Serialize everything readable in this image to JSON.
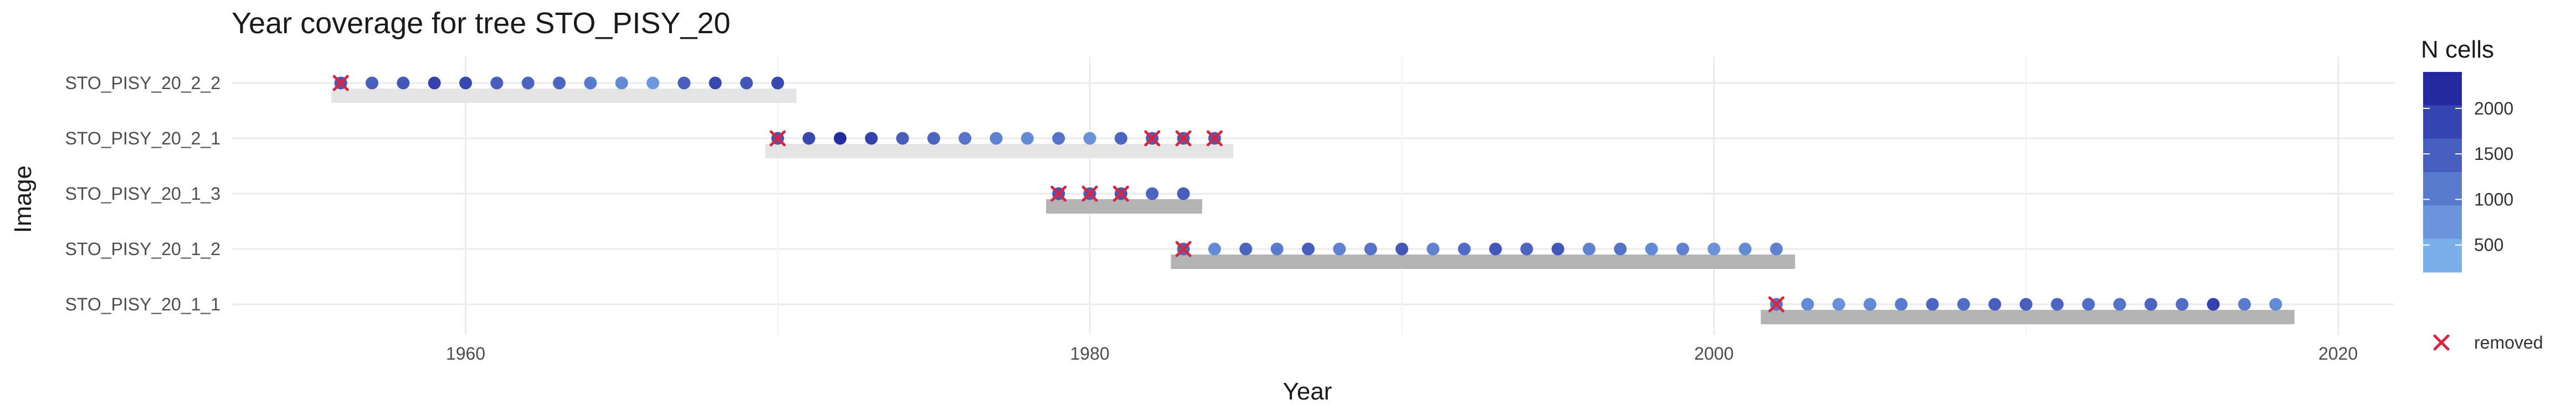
{
  "chart_data": {
    "type": "scatter",
    "title": "Year coverage for tree STO_PISY_20",
    "xlabel": "Year",
    "ylabel": "Image",
    "xlim": [
      1952.5,
      2021.8
    ],
    "x_ticks": [
      1960,
      1980,
      2000,
      2020
    ],
    "grid": true,
    "categories": [
      "STO_PISY_20_2_2",
      "STO_PISY_20_2_1",
      "STO_PISY_20_1_3",
      "STO_PISY_20_1_2",
      "STO_PISY_20_1_1"
    ],
    "coverage_bars": [
      {
        "image": "STO_PISY_20_2_2",
        "start": 1955.7,
        "end": 1970.6,
        "shade": "light"
      },
      {
        "image": "STO_PISY_20_2_1",
        "start": 1969.6,
        "end": 1984.6,
        "shade": "light"
      },
      {
        "image": "STO_PISY_20_1_3",
        "start": 1978.6,
        "end": 1983.6,
        "shade": "dark"
      },
      {
        "image": "STO_PISY_20_1_2",
        "start": 1982.6,
        "end": 2002.6,
        "shade": "dark"
      },
      {
        "image": "STO_PISY_20_1_1",
        "start": 2001.5,
        "end": 2018.6,
        "shade": "dark"
      }
    ],
    "series": [
      {
        "image": "STO_PISY_20_2_2",
        "years": [
          1956,
          1957,
          1958,
          1959,
          1960,
          1961,
          1962,
          1963,
          1964,
          1965,
          1966,
          1967,
          1968,
          1969,
          1970
        ],
        "n_cells": [
          1600,
          1500,
          1600,
          1900,
          1800,
          1500,
          1400,
          1400,
          1100,
          900,
          700,
          1500,
          1800,
          1600,
          1800
        ]
      },
      {
        "image": "STO_PISY_20_2_1",
        "years": [
          1970,
          1971,
          1972,
          1973,
          1974,
          1975,
          1976,
          1977,
          1978,
          1979,
          1980,
          1981,
          1982,
          1983,
          1984
        ],
        "n_cells": [
          1600,
          1800,
          2200,
          1900,
          1500,
          1400,
          1200,
          1000,
          900,
          1200,
          800,
          1400,
          1500,
          1500,
          1500
        ]
      },
      {
        "image": "STO_PISY_20_1_3",
        "years": [
          1979,
          1980,
          1981,
          1982,
          1983
        ],
        "n_cells": [
          1600,
          1500,
          1600,
          1400,
          1500
        ]
      },
      {
        "image": "STO_PISY_20_1_2",
        "years": [
          1983,
          1984,
          1985,
          1986,
          1987,
          1988,
          1989,
          1990,
          1991,
          1992,
          1993,
          1994,
          1995,
          1996,
          1997,
          1998,
          1999,
          2000,
          2001,
          2002
        ],
        "n_cells": [
          1400,
          900,
          1400,
          1100,
          1500,
          1000,
          1200,
          1600,
          1000,
          1300,
          1600,
          1400,
          1600,
          1000,
          1200,
          900,
          1000,
          800,
          900,
          1000
        ]
      },
      {
        "image": "STO_PISY_20_1_1",
        "years": [
          2002,
          2003,
          2004,
          2005,
          2006,
          2007,
          2008,
          2009,
          2010,
          2011,
          2012,
          2013,
          2014,
          2015,
          2016,
          2017,
          2018
        ],
        "n_cells": [
          1200,
          900,
          800,
          900,
          1100,
          1400,
          1300,
          1500,
          1500,
          1400,
          1300,
          1200,
          1400,
          1300,
          1900,
          1100,
          900
        ]
      }
    ],
    "removed": [
      {
        "image": "STO_PISY_20_2_2",
        "years": [
          1956
        ]
      },
      {
        "image": "STO_PISY_20_2_1",
        "years": [
          1970,
          1982,
          1983,
          1984
        ]
      },
      {
        "image": "STO_PISY_20_1_3",
        "years": [
          1979,
          1980,
          1981
        ]
      },
      {
        "image": "STO_PISY_20_1_2",
        "years": [
          1983
        ]
      },
      {
        "image": "STO_PISY_20_1_1",
        "years": [
          2002
        ]
      }
    ],
    "color_scale": {
      "title": "N cells",
      "min": 200,
      "max": 2400,
      "ticks": [
        500,
        1000,
        1500,
        2000
      ],
      "low_color": "#84bdf2",
      "high_color": "#1c1c98"
    },
    "legend": {
      "removed_label": "removed",
      "removed_color": "#d7263d",
      "placement": "right"
    }
  }
}
